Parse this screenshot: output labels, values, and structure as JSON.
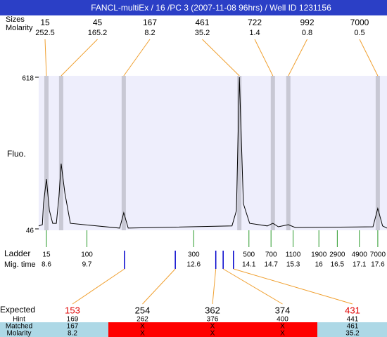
{
  "chart_data": {
    "type": "line",
    "title": "FANCL-multiEx / 16 /PC 3 (2007-11-08 96hrs) / Well ID 1231156",
    "y_label": "Fluo.",
    "xlim": [
      8.39,
      17.85
    ],
    "ylim": [
      46,
      618
    ],
    "yticks": [
      46,
      618
    ],
    "x": [
      8.39,
      8.49,
      8.52,
      8.6,
      8.68,
      8.77,
      8.87,
      8.94,
      9.0,
      9.1,
      9.25,
      10.59,
      10.7,
      10.82,
      13.64,
      13.76,
      13.84,
      13.95,
      14.12,
      14.6,
      14.75,
      14.9,
      15.17,
      15.36,
      17.47,
      17.6,
      17.73,
      17.85
    ],
    "series": [
      {
        "name": "Fluo.",
        "color": "#000000",
        "values": [
          57,
          62,
          141,
          234,
          115,
          67,
          67,
          168,
          292,
          181,
          67,
          49,
          107,
          49,
          57,
          115,
          618,
          141,
          67,
          57,
          67,
          54,
          62,
          51,
          54,
          123,
          57,
          49
        ]
      }
    ],
    "peaks": {
      "size_label": "Sizes",
      "molarity_label": "Molarity",
      "sizes": [
        15,
        45,
        167,
        461,
        722,
        992,
        7000
      ],
      "molarity": [
        252.5,
        165.2,
        8.2,
        35.2,
        1.4,
        0.8,
        0.5
      ],
      "times": [
        8.6,
        9.0,
        10.7,
        13.84,
        14.75,
        15.17,
        17.6
      ]
    },
    "ladder": {
      "label": "Ladder",
      "time_label": "Mig. time",
      "sizes": [
        15,
        100,
        300,
        500,
        700,
        1100,
        1900,
        2900,
        4900,
        7000
      ],
      "times": [
        8.6,
        9.7,
        12.6,
        14.1,
        14.7,
        15.3,
        16,
        16.5,
        17.1,
        17.6
      ]
    },
    "expected": {
      "label": "Expected",
      "hint_label": "Hint",
      "matched_label": "Matched",
      "molarity_label": "Molarity",
      "sizes": [
        153,
        254,
        362,
        374,
        431
      ],
      "times": [
        10.72,
        12.1,
        13.2,
        13.4,
        13.68
      ],
      "hint": [
        169,
        262,
        376,
        400,
        441
      ],
      "matched": [
        167,
        "X",
        "X",
        "X",
        461
      ],
      "molarity": [
        8.2,
        "X",
        "X",
        "X",
        35.2
      ]
    }
  }
}
